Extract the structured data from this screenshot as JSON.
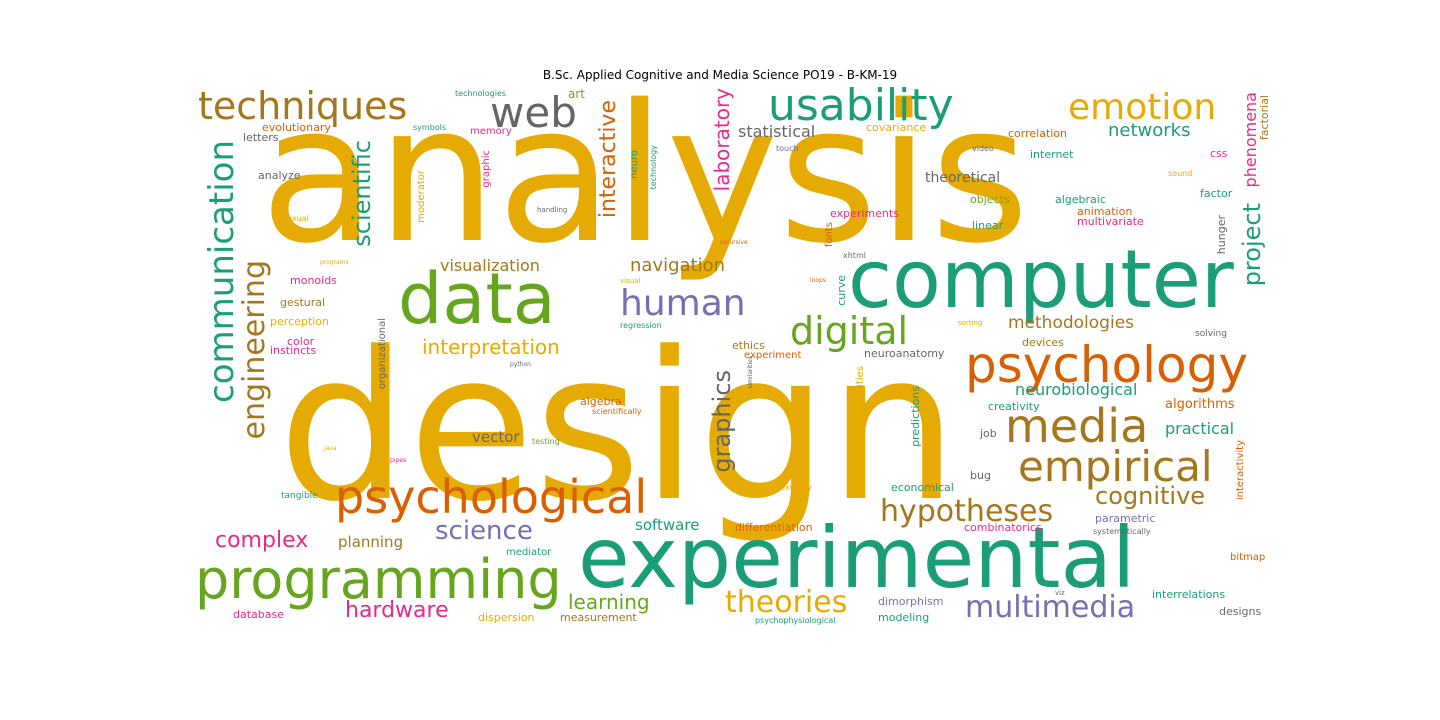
{
  "title": "B.Sc. Applied Cognitive and Media Science  PO19 - B-KM-19",
  "colors": {
    "gold": "#e6ab02",
    "teal": "#1b9e77",
    "orange": "#d95f02",
    "purple": "#7570b3",
    "magenta": "#e7298a",
    "green": "#66a61e",
    "brown": "#a6761d",
    "gray": "#666666"
  },
  "words": [
    {
      "text": "analysis",
      "color": "gold"
    },
    {
      "text": "design",
      "color": "gold"
    },
    {
      "text": "computer",
      "color": "teal"
    },
    {
      "text": "experimental",
      "color": "teal"
    },
    {
      "text": "data",
      "color": "green"
    },
    {
      "text": "programming",
      "color": "green"
    },
    {
      "text": "psychological",
      "color": "orange"
    },
    {
      "text": "psychology",
      "color": "orange"
    },
    {
      "text": "usability",
      "color": "teal"
    },
    {
      "text": "techniques",
      "color": "brown"
    },
    {
      "text": "web",
      "color": "gray"
    },
    {
      "text": "emotion",
      "color": "gold"
    },
    {
      "text": "media",
      "color": "brown"
    },
    {
      "text": "empirical",
      "color": "brown"
    },
    {
      "text": "communication",
      "color": "teal"
    },
    {
      "text": "engineering",
      "color": "brown"
    },
    {
      "text": "digital",
      "color": "green"
    },
    {
      "text": "human",
      "color": "purple"
    },
    {
      "text": "hypotheses",
      "color": "brown"
    },
    {
      "text": "multimedia",
      "color": "purple"
    },
    {
      "text": "theories",
      "color": "gold"
    },
    {
      "text": "graphics",
      "color": "gray"
    },
    {
      "text": "science",
      "color": "purple"
    },
    {
      "text": "cognitive",
      "color": "brown"
    },
    {
      "text": "scientific",
      "color": "teal"
    },
    {
      "text": "project",
      "color": "teal"
    },
    {
      "text": "interactive",
      "color": "orange"
    },
    {
      "text": "laboratory",
      "color": "magenta"
    },
    {
      "text": "complex",
      "color": "magenta"
    },
    {
      "text": "hardware",
      "color": "magenta"
    },
    {
      "text": "learning",
      "color": "green"
    },
    {
      "text": "interpretation",
      "color": "gold"
    },
    {
      "text": "methodologies",
      "color": "brown"
    },
    {
      "text": "navigation",
      "color": "brown"
    },
    {
      "text": "visualization",
      "color": "brown"
    },
    {
      "text": "networks",
      "color": "teal"
    },
    {
      "text": "statistical",
      "color": "gray"
    },
    {
      "text": "neurobiological",
      "color": "teal"
    },
    {
      "text": "phenomena",
      "color": "magenta"
    },
    {
      "text": "practical",
      "color": "teal"
    },
    {
      "text": "software",
      "color": "teal"
    },
    {
      "text": "planning",
      "color": "brown"
    },
    {
      "text": "vector",
      "color": "gray"
    },
    {
      "text": "algorithms",
      "color": "orange"
    },
    {
      "text": "theoretical",
      "color": "gray"
    },
    {
      "text": "art",
      "color": "green"
    },
    {
      "text": "evolutionary",
      "color": "orange"
    },
    {
      "text": "technologies",
      "color": "teal"
    },
    {
      "text": "memory",
      "color": "magenta"
    },
    {
      "text": "symbols",
      "color": "teal"
    },
    {
      "text": "letters",
      "color": "gray"
    },
    {
      "text": "covariance",
      "color": "gold"
    },
    {
      "text": "correlation",
      "color": "orange"
    },
    {
      "text": "css",
      "color": "magenta"
    },
    {
      "text": "factorial",
      "color": "brown"
    },
    {
      "text": "internet",
      "color": "teal"
    },
    {
      "text": "factor",
      "color": "teal"
    },
    {
      "text": "analyze",
      "color": "gray"
    },
    {
      "text": "algebraic",
      "color": "teal"
    },
    {
      "text": "objects",
      "color": "green"
    },
    {
      "text": "animation",
      "color": "orange"
    },
    {
      "text": "multivariate",
      "color": "magenta"
    },
    {
      "text": "experiments",
      "color": "magenta"
    },
    {
      "text": "linear",
      "color": "teal"
    },
    {
      "text": "hunger",
      "color": "gray"
    },
    {
      "text": "sound",
      "color": "gold"
    },
    {
      "text": "video",
      "color": "gray"
    },
    {
      "text": "touch",
      "color": "purple"
    },
    {
      "text": "neuro",
      "color": "teal"
    },
    {
      "text": "technology",
      "color": "teal"
    },
    {
      "text": "graphic",
      "color": "magenta"
    },
    {
      "text": "moderator",
      "color": "gold"
    },
    {
      "text": "handling",
      "color": "gray"
    },
    {
      "text": "sexual",
      "color": "gold"
    },
    {
      "text": "monoids",
      "color": "magenta"
    },
    {
      "text": "gestural",
      "color": "brown"
    },
    {
      "text": "perception",
      "color": "gold"
    },
    {
      "text": "color",
      "color": "magenta"
    },
    {
      "text": "instincts",
      "color": "magenta"
    },
    {
      "text": "programs",
      "color": "gold"
    },
    {
      "text": "visual",
      "color": "gold"
    },
    {
      "text": "recursive",
      "color": "orange"
    },
    {
      "text": "xhtml",
      "color": "gray"
    },
    {
      "text": "loops",
      "color": "orange"
    },
    {
      "text": "fonts",
      "color": "orange"
    },
    {
      "text": "curve",
      "color": "teal"
    },
    {
      "text": "regression",
      "color": "teal"
    },
    {
      "text": "sorting",
      "color": "gold"
    },
    {
      "text": "solving",
      "color": "gray"
    },
    {
      "text": "devices",
      "color": "brown"
    },
    {
      "text": "ethics",
      "color": "brown"
    },
    {
      "text": "experiment",
      "color": "orange"
    },
    {
      "text": "neuroanatomy",
      "color": "gray"
    },
    {
      "text": "creativity",
      "color": "teal"
    },
    {
      "text": "algebra",
      "color": "orange"
    },
    {
      "text": "scientifically",
      "color": "orange"
    },
    {
      "text": "organizational",
      "color": "gray"
    },
    {
      "text": "python",
      "color": "gray"
    },
    {
      "text": "similarities",
      "color": "gray"
    },
    {
      "text": "capabilities",
      "color": "gold"
    },
    {
      "text": "predictions",
      "color": "teal"
    },
    {
      "text": "job",
      "color": "gray"
    },
    {
      "text": "interactivity",
      "color": "orange"
    },
    {
      "text": "testing",
      "color": "green"
    },
    {
      "text": "java",
      "color": "gold"
    },
    {
      "text": "pipes",
      "color": "magenta"
    },
    {
      "text": "bug",
      "color": "gray"
    },
    {
      "text": "tangible",
      "color": "teal"
    },
    {
      "text": "economical",
      "color": "teal"
    },
    {
      "text": "sexuality",
      "color": "gold"
    },
    {
      "text": "combinatorics",
      "color": "magenta"
    },
    {
      "text": "parametric",
      "color": "purple"
    },
    {
      "text": "systematically",
      "color": "gray"
    },
    {
      "text": "differentiation",
      "color": "orange"
    },
    {
      "text": "mediator",
      "color": "teal"
    },
    {
      "text": "bitmap",
      "color": "orange"
    },
    {
      "text": "interrelations",
      "color": "teal"
    },
    {
      "text": "database",
      "color": "magenta"
    },
    {
      "text": "dispersion",
      "color": "gold"
    },
    {
      "text": "measurement",
      "color": "brown"
    },
    {
      "text": "psychophysiological",
      "color": "teal"
    },
    {
      "text": "dimorphism",
      "color": "purple"
    },
    {
      "text": "modeling",
      "color": "teal"
    },
    {
      "text": "viz",
      "color": "gray"
    },
    {
      "text": "designs",
      "color": "gray"
    }
  ]
}
